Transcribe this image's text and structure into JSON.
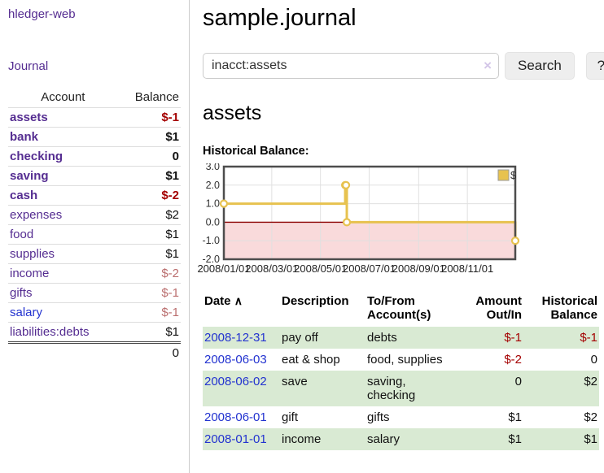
{
  "app": {
    "title": "hledger-web"
  },
  "sidebar": {
    "journal_link": "Journal",
    "header": {
      "account": "Account",
      "balance": "Balance"
    },
    "accounts": [
      {
        "name": "assets",
        "balance": "$-1"
      },
      {
        "name": "bank",
        "balance": "$1"
      },
      {
        "name": "checking",
        "balance": "0"
      },
      {
        "name": "saving",
        "balance": "$1"
      },
      {
        "name": "cash",
        "balance": "$-2"
      },
      {
        "name": "expenses",
        "balance": "$2"
      },
      {
        "name": "food",
        "balance": "$1"
      },
      {
        "name": "supplies",
        "balance": "$1"
      },
      {
        "name": "income",
        "balance": "$-2"
      },
      {
        "name": "gifts",
        "balance": "$-1"
      },
      {
        "name": "salary",
        "balance": "$-1"
      },
      {
        "name": "liabilities:debts",
        "balance": "$1"
      }
    ],
    "total": "0"
  },
  "main": {
    "title": "sample.journal",
    "search": {
      "value": "inacct:assets",
      "clear_icon": "×",
      "button_label": "Search",
      "help_label": "?"
    },
    "account_heading": "assets",
    "chart_label": "Historical Balance:"
  },
  "register": {
    "headers": {
      "date": "Date",
      "sort_icon": "∧",
      "description": "Description",
      "accounts": "To/From Account(s)",
      "amount": "Amount Out/In",
      "balance": "Historical Balance"
    },
    "rows": [
      {
        "date": "2008-12-31",
        "description": "pay off",
        "accounts": "debts",
        "amount": "$-1",
        "balance": "$-1"
      },
      {
        "date": "2008-06-03",
        "description": "eat & shop",
        "accounts": "food, supplies",
        "amount": "$-2",
        "balance": "0"
      },
      {
        "date": "2008-06-02",
        "description": "save",
        "accounts": "saving, checking",
        "amount": "0",
        "balance": "$2"
      },
      {
        "date": "2008-06-01",
        "description": "gift",
        "accounts": "gifts",
        "amount": "$1",
        "balance": "$2"
      },
      {
        "date": "2008-01-01",
        "description": "income",
        "accounts": "salary",
        "amount": "$1",
        "balance": "$1"
      }
    ]
  },
  "chart_data": {
    "type": "line",
    "step": true,
    "title": "Historical Balance:",
    "series": [
      {
        "name": "$",
        "points": [
          {
            "date": "2008-01-01",
            "value": 1
          },
          {
            "date": "2008-06-01",
            "value": 2
          },
          {
            "date": "2008-06-02",
            "value": 2
          },
          {
            "date": "2008-06-03",
            "value": 0
          },
          {
            "date": "2008-12-31",
            "value": -1
          }
        ]
      }
    ],
    "x_range": [
      "2008-01-01",
      "2008-12-31"
    ],
    "ylim": [
      -2,
      3
    ],
    "yticks": [
      {
        "v": 3,
        "label": "3.0"
      },
      {
        "v": 2,
        "label": "2.0"
      },
      {
        "v": 1,
        "label": "1.0"
      },
      {
        "v": 0,
        "label": "0.0"
      },
      {
        "v": -1,
        "label": "-1.0"
      },
      {
        "v": -2,
        "label": "-2.0"
      }
    ],
    "xticks": [
      {
        "date": "2008-01-01",
        "label": "2008/01/01"
      },
      {
        "date": "2008-03-01",
        "label": "2008/03/01"
      },
      {
        "date": "2008-05-01",
        "label": "2008/05/01"
      },
      {
        "date": "2008-07-01",
        "label": "2008/07/01"
      },
      {
        "date": "2008-09-01",
        "label": "2008/09/01"
      },
      {
        "date": "2008-11-01",
        "label": "2008/11/01"
      }
    ],
    "legend_position": "top-right",
    "grid": true,
    "colors": {
      "line": "#e7c24f",
      "marker_fill": "#ffffff",
      "negative_region": "#f9dadb",
      "zero_line": "#8b0000",
      "grid": "#e0e0e0",
      "border": "#4d4d4d"
    }
  }
}
